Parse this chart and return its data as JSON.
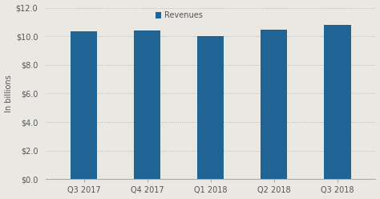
{
  "categories": [
    "Q3 2017",
    "Q4 2017",
    "Q1 2018",
    "Q2 2018",
    "Q3 2018"
  ],
  "values": [
    10.33,
    10.42,
    10.02,
    10.44,
    10.82
  ],
  "bar_color": "#1f6494",
  "legend_label": "Revenues",
  "ylabel": "In billions",
  "ylim": [
    0,
    12
  ],
  "yticks": [
    0,
    2.0,
    4.0,
    6.0,
    8.0,
    10.0,
    12.0
  ],
  "background_color": "#eae8e3",
  "plot_bg_color": "#eae8e3",
  "grid_color": "#b8b4ac",
  "bar_width": 0.42,
  "label_fontsize": 7,
  "tick_fontsize": 7
}
